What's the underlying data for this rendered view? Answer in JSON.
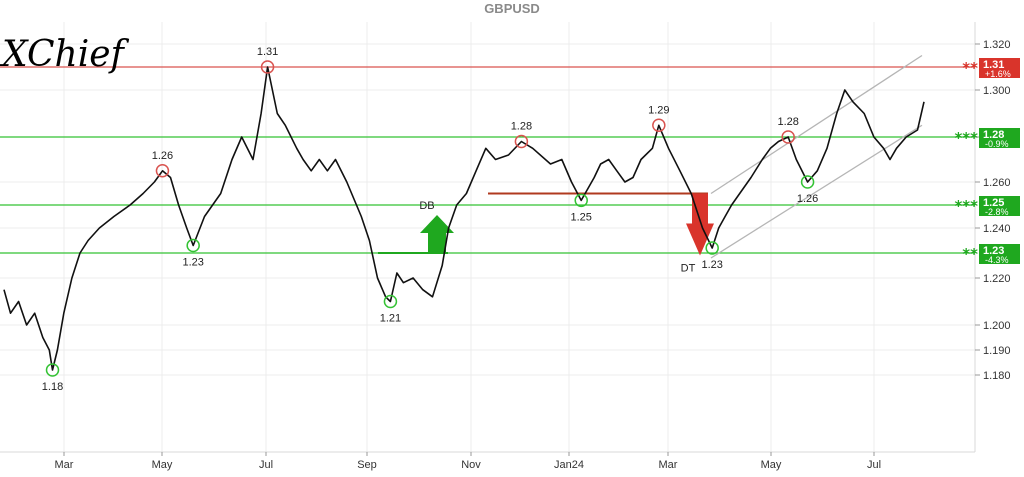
{
  "chart_data": {
    "type": "line",
    "title": "GBPUSD",
    "logo": "XChief",
    "x_ticks": [
      "Mar",
      "May",
      "Jul",
      "Sep",
      "Nov",
      "Jan24",
      "Mar",
      "May",
      "Jul"
    ],
    "y_ticks": [
      "1.320",
      "1.300",
      "1.280",
      "1.260",
      "1.240",
      "1.220",
      "1.200",
      "1.190",
      "1.180"
    ],
    "ylim": [
      1.165,
      1.325
    ],
    "series": [
      {
        "x": [
          "2023-02-01",
          "2023-02-05",
          "2023-02-10",
          "2023-02-15",
          "2023-02-20",
          "2023-02-25",
          "2023-03-01",
          "2023-03-03",
          "2023-03-06",
          "2023-03-10",
          "2023-03-15",
          "2023-03-20",
          "2023-03-25",
          "2023-04-01",
          "2023-04-10",
          "2023-04-20",
          "2023-04-28",
          "2023-05-05",
          "2023-05-10",
          "2023-05-15",
          "2023-05-20",
          "2023-05-25",
          "2023-05-29",
          "2023-06-05",
          "2023-06-15",
          "2023-06-22",
          "2023-06-28",
          "2023-07-05",
          "2023-07-10",
          "2023-07-14",
          "2023-07-20",
          "2023-07-25",
          "2023-08-01",
          "2023-08-05",
          "2023-08-10",
          "2023-08-15",
          "2023-08-20",
          "2023-08-25",
          "2023-09-01",
          "2023-09-10",
          "2023-09-15",
          "2023-09-20",
          "2023-09-25",
          "2023-09-28",
          "2023-10-02",
          "2023-10-06",
          "2023-10-12",
          "2023-10-18",
          "2023-10-24",
          "2023-10-30",
          "2023-11-03",
          "2023-11-08",
          "2023-11-14",
          "2023-11-20",
          "2023-11-26",
          "2023-12-02",
          "2023-12-10",
          "2023-12-18",
          "2023-12-25",
          "2024-01-05",
          "2024-01-12",
          "2024-01-18",
          "2024-01-24",
          "2024-02-01",
          "2024-02-05",
          "2024-02-10",
          "2024-02-15",
          "2024-02-20",
          "2024-02-25",
          "2024-03-01",
          "2024-03-08",
          "2024-03-12",
          "2024-03-18",
          "2024-03-25",
          "2024-04-01",
          "2024-04-08",
          "2024-04-14",
          "2024-04-18",
          "2024-04-22",
          "2024-04-26",
          "2024-05-01",
          "2024-05-08",
          "2024-05-15",
          "2024-05-20",
          "2024-05-25",
          "2024-05-31",
          "2024-06-05",
          "2024-06-12",
          "2024-06-18",
          "2024-06-24",
          "2024-06-30",
          "2024-07-05",
          "2024-07-10",
          "2024-07-17",
          "2024-07-23",
          "2024-07-29",
          "2024-08-02",
          "2024-08-06",
          "2024-08-12",
          "2024-08-19",
          "2024-08-23"
        ],
        "values": [
          1.215,
          1.205,
          1.21,
          1.2,
          1.205,
          1.195,
          1.19,
          1.182,
          1.19,
          1.205,
          1.22,
          1.23,
          1.235,
          1.24,
          1.245,
          1.25,
          1.255,
          1.26,
          1.265,
          1.262,
          1.25,
          1.24,
          1.233,
          1.245,
          1.255,
          1.27,
          1.28,
          1.27,
          1.29,
          1.31,
          1.29,
          1.285,
          1.275,
          1.27,
          1.265,
          1.27,
          1.265,
          1.27,
          1.26,
          1.245,
          1.235,
          1.22,
          1.212,
          1.21,
          1.222,
          1.218,
          1.22,
          1.215,
          1.212,
          1.225,
          1.24,
          1.25,
          1.255,
          1.265,
          1.275,
          1.27,
          1.272,
          1.278,
          1.275,
          1.268,
          1.27,
          1.26,
          1.252,
          1.262,
          1.268,
          1.27,
          1.265,
          1.26,
          1.262,
          1.27,
          1.275,
          1.285,
          1.275,
          1.265,
          1.255,
          1.24,
          1.232,
          1.24,
          1.245,
          1.25,
          1.255,
          1.262,
          1.27,
          1.275,
          1.278,
          1.28,
          1.27,
          1.26,
          1.265,
          1.275,
          1.29,
          1.3,
          1.295,
          1.29,
          1.28,
          1.275,
          1.27,
          1.275,
          1.28,
          1.283,
          1.295
        ]
      }
    ],
    "levels": [
      {
        "value": 1.31,
        "color": "#d9534f",
        "stars": "**",
        "label": "1.31",
        "pct": "+1.6%",
        "bg": "#d9342b"
      },
      {
        "value": 1.28,
        "color": "#33c233",
        "stars": "***",
        "label": "1.28",
        "pct": "-0.9%",
        "bg": "#1fa81f"
      },
      {
        "value": 1.25,
        "color": "#33c233",
        "stars": "***",
        "label": "1.25",
        "pct": "-2.8%",
        "bg": "#1fa81f"
      },
      {
        "value": 1.23,
        "color": "#33c233",
        "stars": "**",
        "label": "1.23",
        "pct": "-4.3%",
        "bg": "#1fa81f"
      }
    ],
    "pivots": [
      {
        "x": "2023-03-03",
        "y": 1.182,
        "label": "1.18",
        "type": "low"
      },
      {
        "x": "2023-05-10",
        "y": 1.265,
        "label": "1.26",
        "type": "high"
      },
      {
        "x": "2023-05-29",
        "y": 1.233,
        "label": "1.23",
        "type": "low"
      },
      {
        "x": "2023-07-14",
        "y": 1.31,
        "label": "1.31",
        "type": "high"
      },
      {
        "x": "2023-09-28",
        "y": 1.21,
        "label": "1.21",
        "type": "low"
      },
      {
        "x": "2023-12-18",
        "y": 1.278,
        "label": "1.28",
        "type": "high"
      },
      {
        "x": "2024-01-24",
        "y": 1.252,
        "label": "1.25",
        "type": "low"
      },
      {
        "x": "2024-03-12",
        "y": 1.285,
        "label": "1.29",
        "type": "high"
      },
      {
        "x": "2024-04-14",
        "y": 1.232,
        "label": "1.23",
        "type": "low"
      },
      {
        "x": "2024-05-31",
        "y": 1.28,
        "label": "1.28",
        "type": "high"
      },
      {
        "x": "2024-06-12",
        "y": 1.26,
        "label": "1.26",
        "type": "low"
      }
    ],
    "patterns": [
      {
        "label": "DB",
        "direction": "up",
        "color": "#1fa81f"
      },
      {
        "label": "DT",
        "direction": "down",
        "color": "#d9342b"
      }
    ],
    "colors": {
      "line": "#111111",
      "high": "#d9534f",
      "low": "#33c233",
      "channel": "#b5b5b5"
    }
  }
}
